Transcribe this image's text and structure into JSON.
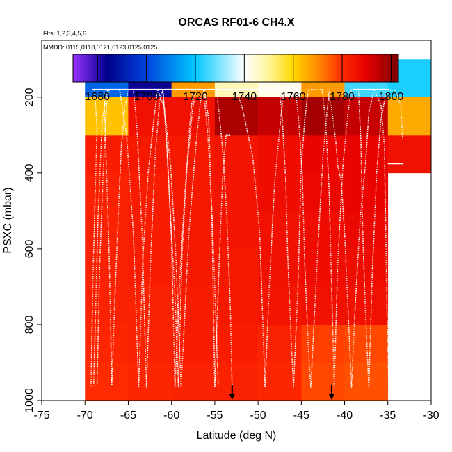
{
  "chart_data": {
    "type": "heatmap",
    "title": "ORCAS RF01-6 CH4.X",
    "subtitle_flights": "Flts: 1,2,3,4,5,6",
    "subtitle_dates": "MMDD: 0115,0118,0121,0123,0125,0125",
    "xlabel": "Latitude (deg N)",
    "ylabel": "PSXC (mbar)",
    "xlim": [
      -75,
      -30
    ],
    "ylim": [
      1000,
      50
    ],
    "x_ticks": [
      -75,
      -70,
      -65,
      -60,
      -55,
      -50,
      -45,
      -40,
      -35,
      -30
    ],
    "x_tick_labels": [
      "-75",
      "-70",
      "-65",
      "-60",
      "-55",
      "-50",
      "-45",
      "-40",
      "-35",
      "-30"
    ],
    "y_ticks": [
      200,
      400,
      600,
      800,
      1000
    ],
    "y_tick_labels": [
      "200",
      "400",
      "600",
      "800",
      "1000"
    ],
    "colorbar": {
      "range": [
        1670,
        1803
      ],
      "ticks": [
        1680,
        1700,
        1720,
        1740,
        1760,
        1780,
        1800
      ],
      "tick_labels": [
        "1680",
        "1700",
        "1720",
        "1740",
        "1760",
        "1780",
        "1800"
      ],
      "stops": [
        {
          "value": 1670,
          "color": "#9933ff"
        },
        {
          "value": 1684,
          "color": "#00008b"
        },
        {
          "value": 1700,
          "color": "#0044dd"
        },
        {
          "value": 1720,
          "color": "#00c8ff"
        },
        {
          "value": 1740,
          "color": "#ffffff"
        },
        {
          "value": 1750,
          "color": "#fff59a"
        },
        {
          "value": 1760,
          "color": "#ffd700"
        },
        {
          "value": 1770,
          "color": "#ff8c00"
        },
        {
          "value": 1780,
          "color": "#ff2a00"
        },
        {
          "value": 1790,
          "color": "#e60000"
        },
        {
          "value": 1803,
          "color": "#7a0000"
        }
      ]
    },
    "lat_bins": [
      -70,
      -65,
      -60,
      -55,
      -50,
      -45,
      -40,
      -35,
      -30
    ],
    "pressure_bins": [
      100,
      200,
      300,
      400,
      500,
      600,
      700,
      800,
      900,
      1000
    ],
    "values": [
      [
        1705,
        1683,
        1768,
        1747,
        1742,
        1768,
        1725,
        1722
      ],
      [
        1763,
        1786,
        1786,
        1797,
        1794,
        1798,
        1794,
        1766
      ],
      [
        1783,
        1784,
        1784,
        1785,
        1787,
        1789,
        1789,
        1786
      ],
      [
        1782,
        1783,
        1784,
        1785,
        1787,
        1788,
        1789,
        null
      ],
      [
        1782,
        1783,
        1784,
        1785,
        1786,
        1787,
        1788,
        null
      ],
      [
        1782,
        1783,
        1784,
        1784,
        1786,
        1787,
        1787,
        null
      ],
      [
        1782,
        1782,
        1783,
        1784,
        1785,
        1786,
        1786,
        null
      ],
      [
        1781,
        1782,
        1783,
        1783,
        1782,
        1778,
        1777,
        null
      ],
      [
        1780,
        1781,
        1782,
        1782,
        1781,
        1777,
        1776,
        null
      ]
    ],
    "arrows_lat": [
      -53,
      -41.5
    ],
    "flight_tracks": [
      [
        [
          -69.3,
          965
        ],
        [
          -69.1,
          700
        ],
        [
          -68.8,
          430
        ],
        [
          -68.6,
          280
        ],
        [
          -68.9,
          180
        ],
        [
          -67.8,
          180
        ],
        [
          -67.6,
          330
        ],
        [
          -67.2,
          620
        ],
        [
          -66.9,
          960
        ],
        [
          -66.5,
          700
        ],
        [
          -66.1,
          480
        ],
        [
          -65.8,
          330
        ],
        [
          -65.4,
          230
        ],
        [
          -65.0,
          180
        ],
        [
          -61.0,
          180
        ],
        [
          -60.7,
          280
        ],
        [
          -60.2,
          480
        ],
        [
          -59.6,
          720
        ],
        [
          -59.2,
          965
        ],
        [
          -58.8,
          620
        ],
        [
          -58.2,
          380
        ],
        [
          -57.6,
          240
        ],
        [
          -57.2,
          180
        ],
        [
          -54.8,
          180
        ],
        [
          -54.5,
          240
        ],
        [
          -54.0,
          360
        ],
        [
          -53.6,
          520
        ],
        [
          -53.2,
          760
        ],
        [
          -53.0,
          965
        ]
      ],
      [
        [
          -68.6,
          960
        ],
        [
          -68.3,
          640
        ],
        [
          -67.9,
          400
        ],
        [
          -67.5,
          220
        ],
        [
          -67.2,
          180
        ],
        [
          -66.0,
          180
        ],
        [
          -65.2,
          300
        ],
        [
          -64.4,
          560
        ],
        [
          -63.8,
          965
        ],
        [
          -63.3,
          620
        ],
        [
          -62.7,
          400
        ],
        [
          -62.0,
          250
        ],
        [
          -61.6,
          180
        ],
        [
          -60.8,
          230
        ],
        [
          -60.1,
          380
        ],
        [
          -59.5,
          620
        ],
        [
          -58.9,
          965
        ],
        [
          -58.0,
          560
        ],
        [
          -57.2,
          330
        ],
        [
          -56.6,
          200
        ],
        [
          -56.2,
          180
        ],
        [
          -55.7,
          260
        ],
        [
          -55.3,
          560
        ],
        [
          -55.0,
          965
        ],
        [
          -54.5,
          640
        ],
        [
          -54.1,
          420
        ],
        [
          -53.7,
          300
        ],
        [
          -53.2,
          300
        ]
      ],
      [
        [
          -69.0,
          960
        ],
        [
          -68.5,
          520
        ],
        [
          -68.0,
          260
        ],
        [
          -67.4,
          180
        ],
        [
          -64.4,
          180
        ],
        [
          -64.0,
          280
        ],
        [
          -63.4,
          560
        ],
        [
          -62.9,
          965
        ],
        [
          -62.4,
          620
        ],
        [
          -61.9,
          360
        ],
        [
          -61.4,
          215
        ],
        [
          -61.0,
          180
        ],
        [
          -60.6,
          290
        ],
        [
          -60.0,
          580
        ],
        [
          -59.6,
          965
        ],
        [
          -59.1,
          700
        ],
        [
          -58.4,
          430
        ],
        [
          -57.8,
          250
        ],
        [
          -57.5,
          180
        ],
        [
          -56.3,
          180
        ],
        [
          -55.8,
          300
        ],
        [
          -55.3,
          520
        ],
        [
          -54.9,
          760
        ],
        [
          -54.6,
          965
        ]
      ],
      [
        [
          -55.0,
          180
        ],
        [
          -52.5,
          180
        ],
        [
          -51.8,
          230
        ],
        [
          -50.6,
          360
        ],
        [
          -49.8,
          560
        ],
        [
          -49.5,
          760
        ],
        [
          -49.2,
          965
        ],
        [
          -48.7,
          700
        ],
        [
          -48.1,
          430
        ],
        [
          -47.4,
          260
        ],
        [
          -47.0,
          180
        ],
        [
          -45.7,
          180
        ],
        [
          -45.3,
          260
        ],
        [
          -44.9,
          400
        ],
        [
          -44.6,
          640
        ],
        [
          -44.2,
          860
        ],
        [
          -43.9,
          965
        ],
        [
          -43.5,
          780
        ],
        [
          -43.0,
          560
        ],
        [
          -42.5,
          360
        ],
        [
          -42.0,
          230
        ],
        [
          -41.7,
          180
        ]
      ],
      [
        [
          -47.5,
          180
        ],
        [
          -47.2,
          260
        ],
        [
          -46.8,
          420
        ],
        [
          -46.6,
          600
        ],
        [
          -46.2,
          830
        ],
        [
          -45.9,
          965
        ],
        [
          -45.4,
          700
        ],
        [
          -45.0,
          380
        ],
        [
          -44.6,
          260
        ],
        [
          -44.2,
          180
        ],
        [
          -42.6,
          180
        ],
        [
          -42.2,
          260
        ],
        [
          -41.8,
          440
        ],
        [
          -41.5,
          700
        ],
        [
          -41.2,
          965
        ],
        [
          -40.8,
          640
        ],
        [
          -40.2,
          380
        ],
        [
          -39.6,
          240
        ],
        [
          -39.2,
          180
        ],
        [
          -38.4,
          180
        ],
        [
          -38.1,
          330
        ],
        [
          -37.9,
          560
        ],
        [
          -37.6,
          760
        ],
        [
          -37.2,
          965
        ],
        [
          -36.8,
          660
        ],
        [
          -36.3,
          400
        ],
        [
          -35.8,
          260
        ],
        [
          -35.2,
          185
        ],
        [
          -34.2,
          180
        ],
        [
          -33.5,
          220
        ],
        [
          -33.3,
          310
        ]
      ],
      [
        [
          -42.0,
          180
        ],
        [
          -41.5,
          230
        ],
        [
          -41.0,
          320
        ],
        [
          -40.8,
          380
        ],
        [
          -40.4,
          420
        ],
        [
          -40.0,
          560
        ],
        [
          -39.6,
          760
        ],
        [
          -39.2,
          965
        ],
        [
          -38.8,
          760
        ],
        [
          -38.2,
          520
        ],
        [
          -37.6,
          380
        ],
        [
          -37.2,
          240
        ],
        [
          -36.6,
          180
        ],
        [
          -35.8,
          220
        ],
        [
          -35.4,
          330
        ],
        [
          -35.1,
          760
        ],
        [
          -34.9,
          965
        ]
      ]
    ]
  }
}
